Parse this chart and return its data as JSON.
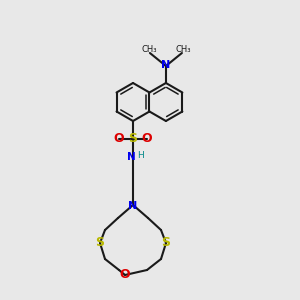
{
  "bg_color": "#e8e8e8",
  "bond_color": "#1a1a1a",
  "N_color": "#0000ee",
  "S_color": "#b8b800",
  "O_color": "#dd0000",
  "H_color": "#008888",
  "lw": 1.5,
  "inner_lw": 1.1,
  "inner_off": 3.5,
  "inner_shrink": 0.15,
  "BL": 19,
  "figsize": [
    3.0,
    3.0
  ],
  "dpi": 100,
  "xlim": [
    0,
    300
  ],
  "ylim": [
    0,
    300
  ]
}
